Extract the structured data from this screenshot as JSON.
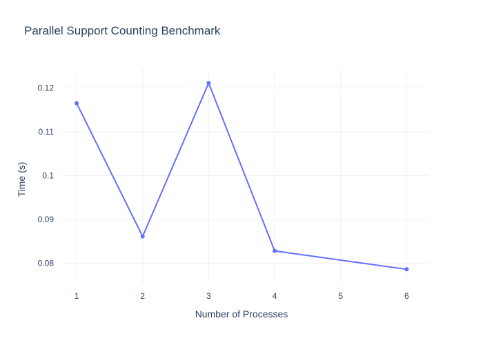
{
  "chart_data": {
    "type": "line",
    "title": "Parallel Support Counting Benchmark",
    "xlabel": "Number of Processes",
    "ylabel": "Time (s)",
    "x": [
      1,
      2,
      3,
      4,
      6
    ],
    "series": [
      {
        "values": [
          0.1165,
          0.0861,
          0.1211,
          0.0828,
          0.0786
        ]
      }
    ],
    "x_ticks": [
      "1",
      "2",
      "3",
      "4",
      "5",
      "6"
    ],
    "y_ticks": [
      "0.08",
      "0.09",
      "0.1",
      "0.11",
      "0.12"
    ],
    "xlim": [
      0.78,
      6.32
    ],
    "ylim": [
      0.0755,
      0.1243
    ],
    "grid": true,
    "line_color": "#636efa",
    "grid_color": "#ebf0f8",
    "text_color": "#2a3f5f"
  }
}
